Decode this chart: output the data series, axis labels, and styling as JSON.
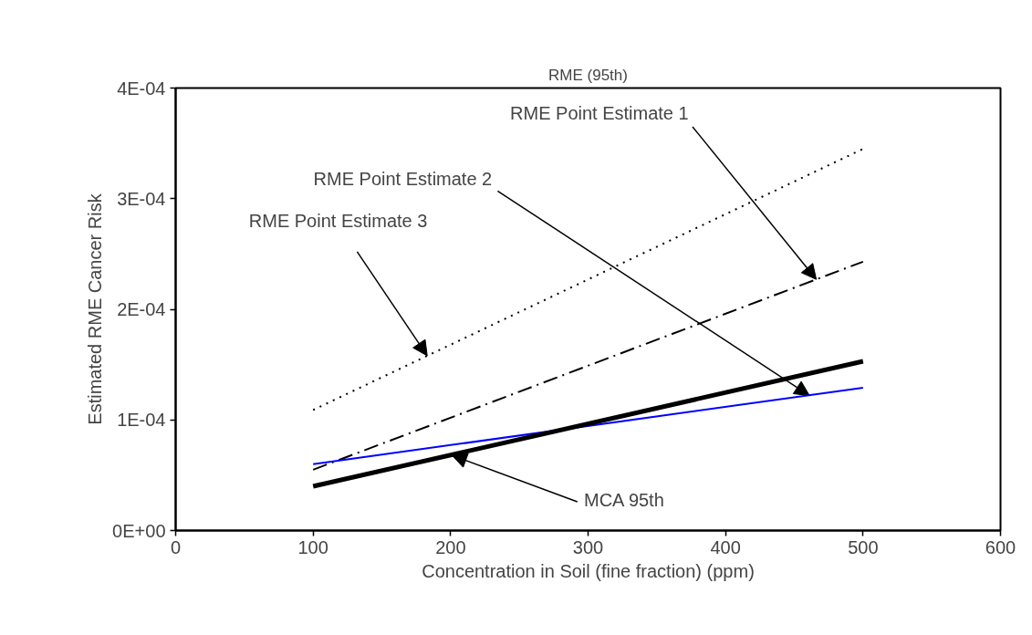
{
  "chart_data": {
    "type": "line",
    "title": "RME (95th)",
    "xlabel": "Concentration in Soil (fine fraction) (ppm)",
    "ylabel": "Estimated RME Cancer Risk",
    "x": [
      100,
      500
    ],
    "series": [
      {
        "color": "#000000",
        "line_style": "dotted",
        "values": [
          0.000109,
          0.000345
        ]
      },
      {
        "color": "#000000",
        "line_style": "dashdot",
        "values": [
          5.5e-05,
          0.000243
        ]
      },
      {
        "color": "#0000ff",
        "line_style": "solid",
        "values": [
          6e-05,
          0.000129
        ]
      },
      {
        "color": "#000000",
        "line_style": "solid",
        "values": [
          4e-05,
          0.000153
        ]
      }
    ],
    "annotations": [
      {
        "text": "RME Point Estimate 1",
        "x": 466,
        "y": 0.000227
      },
      {
        "text": "RME Point Estimate 2",
        "x": 461,
        "y": 0.000122
      },
      {
        "text": "RME Point Estimate 3",
        "x": 183,
        "y": 0.000158
      },
      {
        "text": "MCA 95th",
        "x": 201,
        "y": 6.8e-05
      }
    ],
    "xlim": [
      0,
      600
    ],
    "ylim": [
      0,
      0.0004
    ],
    "xticks": [
      0,
      100,
      200,
      300,
      400,
      500,
      600
    ],
    "yticks": [
      {
        "value": 0,
        "label": "0E+00"
      },
      {
        "value": 0.0001,
        "label": "1E-04"
      },
      {
        "value": 0.0002,
        "label": "2E-04"
      },
      {
        "value": 0.0003,
        "label": "3E-04"
      },
      {
        "value": 0.0004,
        "label": "4E-04"
      }
    ],
    "grid": false,
    "marker": "none"
  }
}
